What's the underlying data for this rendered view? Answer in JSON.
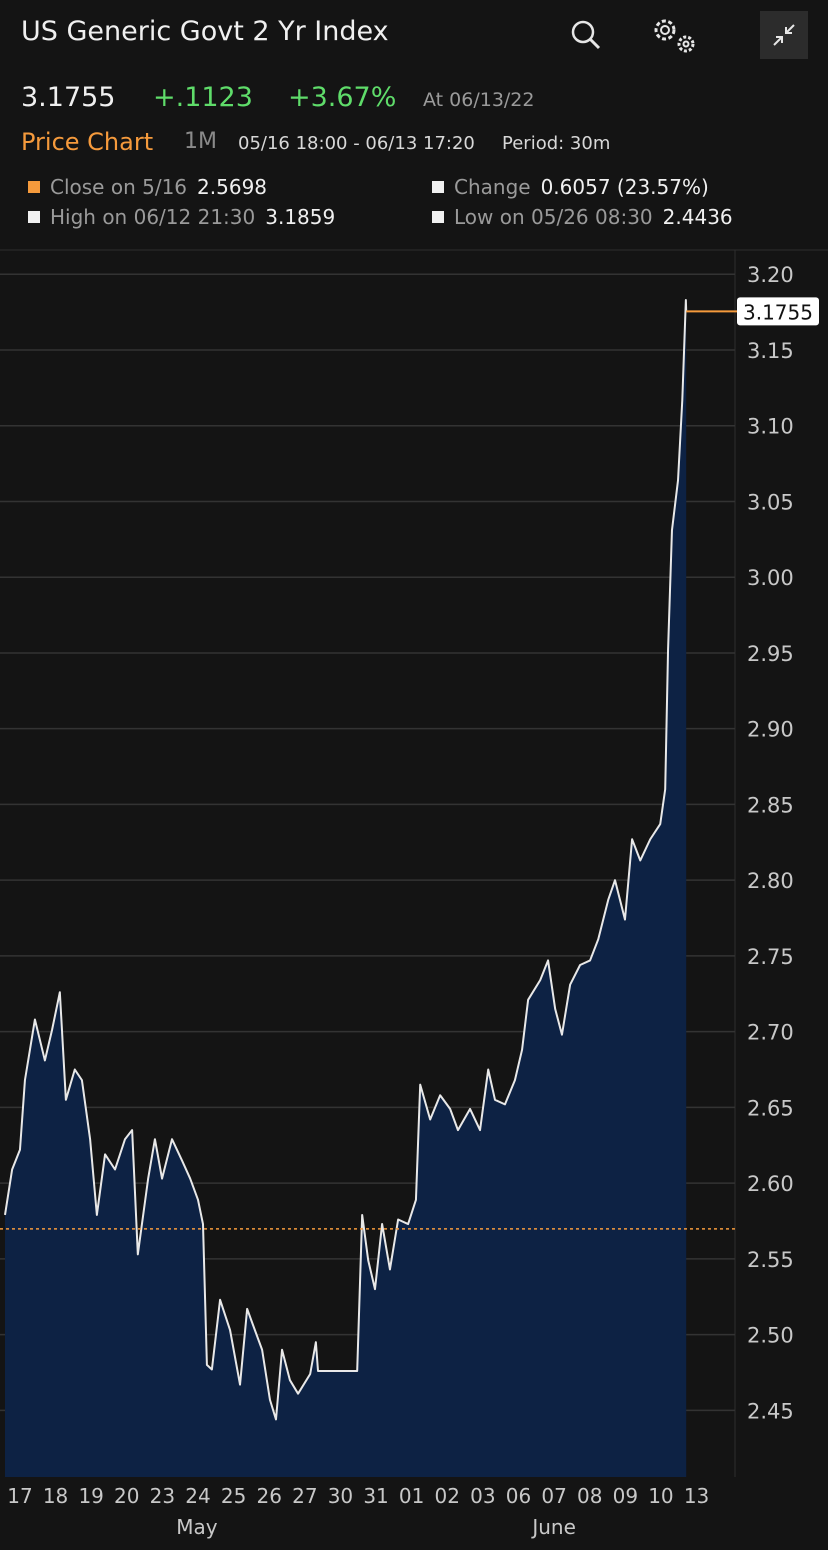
{
  "header": {
    "title": "US Generic Govt 2 Yr Index",
    "price": "3.1755",
    "change": "+.1123",
    "change_pct": "+3.67%",
    "as_of": "At 06/13/22",
    "chart_label": "Price Chart",
    "range": "1M",
    "period_range": "05/16 18:00 - 06/13 17:20",
    "period": "Period: 30m"
  },
  "stats": [
    {
      "label": "Close on 5/16",
      "value": "2.5698"
    },
    {
      "label": "Change",
      "value": "0.6057 (23.57%)"
    },
    {
      "label": "High on 06/12 21:30",
      "value": "3.1859"
    },
    {
      "label": "Low on 05/26 08:30",
      "value": "2.4436"
    }
  ],
  "chart_data": {
    "type": "area",
    "color": "#e8e8e8",
    "fill": "#0d2244",
    "grid": true,
    "x": [
      -0.42,
      -0.22,
      0,
      0.14,
      0.42,
      0.7,
      0.9,
      1.12,
      1.29,
      1.54,
      1.74,
      1.97,
      2.16,
      2.39,
      2.67,
      2.95,
      3.15,
      3.31,
      3.6,
      3.79,
      3.99,
      4.27,
      4.55,
      4.78,
      5.0,
      5.14,
      5.25,
      5.39,
      5.62,
      5.9,
      6.18,
      6.38,
      6.69,
      6.8,
      7.02,
      7.19,
      7.36,
      7.58,
      7.81,
      8.15,
      8.31,
      8.37,
      9.47,
      9.61,
      9.78,
      9.97,
      10.17,
      10.39,
      10.62,
      10.9,
      11.12,
      11.24,
      11.52,
      11.8,
      12.08,
      12.3,
      12.64,
      12.92,
      13.15,
      13.34,
      13.62,
      13.9,
      14.1,
      14.27,
      14.61,
      14.83,
      15.03,
      15.22,
      15.45,
      15.73,
      16.01,
      16.24,
      16.52,
      16.71,
      16.99,
      17.19,
      17.42,
      17.7,
      17.98,
      18.12,
      18.2,
      18.31,
      18.48,
      18.6,
      18.7,
      18.71
    ],
    "values": [
      2.579,
      2.609,
      2.622,
      2.668,
      2.708,
      2.681,
      2.701,
      2.726,
      2.655,
      2.675,
      2.668,
      2.629,
      2.579,
      2.619,
      2.609,
      2.629,
      2.635,
      2.553,
      2.603,
      2.629,
      2.603,
      2.629,
      2.615,
      2.603,
      2.589,
      2.573,
      2.48,
      2.477,
      2.523,
      2.503,
      2.467,
      2.517,
      2.497,
      2.49,
      2.457,
      2.444,
      2.49,
      2.47,
      2.461,
      2.474,
      2.495,
      2.476,
      2.476,
      2.579,
      2.549,
      2.53,
      2.573,
      2.543,
      2.576,
      2.573,
      2.589,
      2.665,
      2.642,
      2.658,
      2.649,
      2.635,
      2.649,
      2.635,
      2.675,
      2.655,
      2.652,
      2.668,
      2.688,
      2.721,
      2.734,
      2.747,
      2.715,
      2.698,
      2.731,
      2.744,
      2.747,
      2.761,
      2.787,
      2.8,
      2.774,
      2.827,
      2.813,
      2.827,
      2.837,
      2.86,
      2.952,
      3.031,
      3.064,
      3.117,
      3.183,
      3.1755
    ],
    "xlim": [
      -0.42,
      20.08
    ],
    "ylim": [
      2.406,
      3.216
    ],
    "xticks": [
      {
        "value": 0,
        "label": "17"
      },
      {
        "value": 1,
        "label": "18"
      },
      {
        "value": 2,
        "label": "19"
      },
      {
        "value": 3,
        "label": "20"
      },
      {
        "value": 4,
        "label": "23"
      },
      {
        "value": 5,
        "label": "24"
      },
      {
        "value": 6,
        "label": "25"
      },
      {
        "value": 7,
        "label": "26"
      },
      {
        "value": 8,
        "label": "27"
      },
      {
        "value": 9,
        "label": "30"
      },
      {
        "value": 10,
        "label": "31"
      },
      {
        "value": 11,
        "label": "01"
      },
      {
        "value": 12,
        "label": "02"
      },
      {
        "value": 13,
        "label": "03"
      },
      {
        "value": 14,
        "label": "06"
      },
      {
        "value": 15,
        "label": "07"
      },
      {
        "value": 16,
        "label": "08"
      },
      {
        "value": 17,
        "label": "09"
      },
      {
        "value": 18,
        "label": "10"
      },
      {
        "value": 19,
        "label": "13"
      }
    ],
    "yticks": [
      2.45,
      {
        "value": 2.5,
        "label": "2.50"
      },
      2.55,
      {
        "value": 2.6,
        "label": "2.60"
      },
      2.65,
      {
        "value": 2.7,
        "label": "2.70"
      },
      2.75,
      {
        "value": 2.8,
        "label": "2.80"
      },
      2.85,
      {
        "value": 2.9,
        "label": "2.90"
      },
      2.95,
      {
        "value": 3.0,
        "label": "3.00"
      },
      3.05,
      {
        "value": 3.1,
        "label": "3.10"
      },
      3.15,
      {
        "value": 3.2,
        "label": "3.20"
      }
    ],
    "month_labels": [
      {
        "value": 4.97,
        "label": "May"
      },
      {
        "value": 15.0,
        "label": "June"
      }
    ],
    "reference": 2.5698,
    "reference_color": "#f59a3c"
  }
}
